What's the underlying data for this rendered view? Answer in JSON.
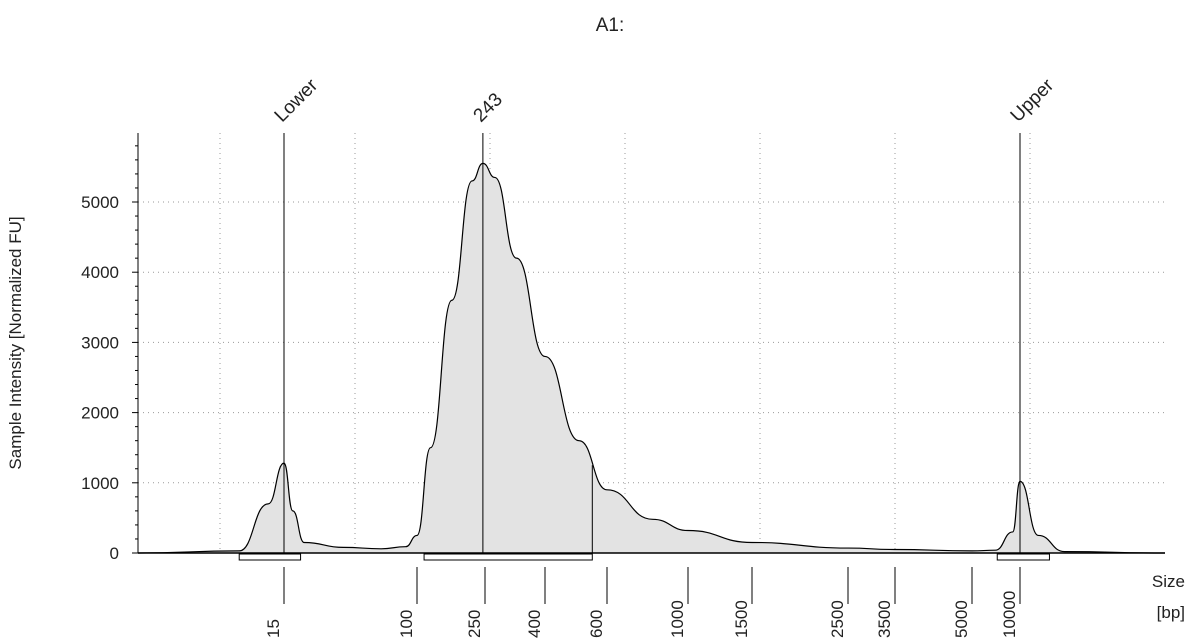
{
  "chart_data": {
    "type": "area",
    "title": "A1:",
    "ylabel": "Sample Intensity [Normalized FU]",
    "xlabel": "Size",
    "xunit": "[bp]",
    "xscale": "nonlinear (size ladder)",
    "ylim": [
      0,
      5900
    ],
    "yticks": [
      0,
      1000,
      2000,
      3000,
      4000,
      5000
    ],
    "y_minor_step": 200,
    "xticks": [
      15,
      100,
      250,
      400,
      600,
      1000,
      1500,
      2500,
      3500,
      5000,
      10000
    ],
    "grid": true,
    "peak_labels": [
      {
        "label": "Lower",
        "size": 15
      },
      {
        "label": "243",
        "size": 243
      },
      {
        "label": "Upper",
        "size": 10000
      }
    ],
    "series": [
      {
        "values": [
          {
            "x": 4,
            "y": 0
          },
          {
            "x": 10,
            "y": 30
          },
          {
            "x": 13,
            "y": 700
          },
          {
            "x": 15,
            "y": 1280
          },
          {
            "x": 17,
            "y": 600
          },
          {
            "x": 20,
            "y": 150
          },
          {
            "x": 35,
            "y": 80
          },
          {
            "x": 60,
            "y": 60
          },
          {
            "x": 85,
            "y": 90
          },
          {
            "x": 100,
            "y": 250
          },
          {
            "x": 120,
            "y": 1500
          },
          {
            "x": 160,
            "y": 3600
          },
          {
            "x": 210,
            "y": 5300
          },
          {
            "x": 243,
            "y": 5550
          },
          {
            "x": 270,
            "y": 5350
          },
          {
            "x": 320,
            "y": 4200
          },
          {
            "x": 400,
            "y": 2800
          },
          {
            "x": 500,
            "y": 1600
          },
          {
            "x": 600,
            "y": 900
          },
          {
            "x": 800,
            "y": 480
          },
          {
            "x": 1000,
            "y": 320
          },
          {
            "x": 1500,
            "y": 150
          },
          {
            "x": 2500,
            "y": 70
          },
          {
            "x": 3500,
            "y": 50
          },
          {
            "x": 5000,
            "y": 30
          },
          {
            "x": 7000,
            "y": 40
          },
          {
            "x": 9000,
            "y": 300
          },
          {
            "x": 10000,
            "y": 1020
          },
          {
            "x": 11500,
            "y": 250
          },
          {
            "x": 14000,
            "y": 20
          },
          {
            "x": 30000,
            "y": 0
          }
        ]
      }
    ],
    "regions": [
      {
        "from": 10,
        "to": 19
      },
      {
        "from": 110,
        "to": 545
      },
      {
        "from": 7200,
        "to": 12500
      }
    ],
    "colors": {
      "fill": "#e3e3e3",
      "line": "#000000",
      "grid": "#9a9a9a"
    }
  }
}
